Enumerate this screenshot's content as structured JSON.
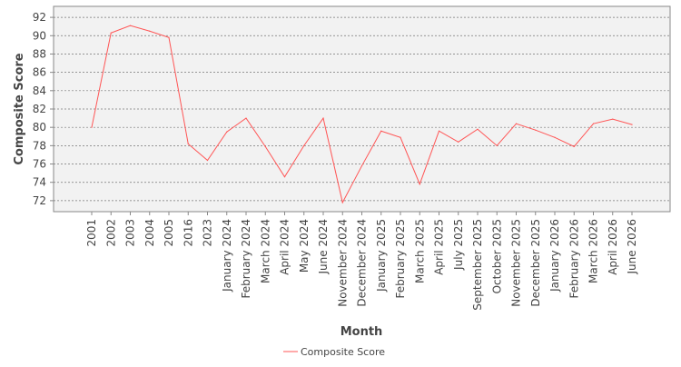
{
  "chart_data": {
    "type": "line",
    "title": "",
    "xlabel": "Month",
    "ylabel": "Composite Score",
    "categories": [
      "2001",
      "2002",
      "2003",
      "2004",
      "2005",
      "2016",
      "2023",
      "January 2024",
      "February 2024",
      "March 2024",
      "April 2024",
      "May 2024",
      "June 2024",
      "November 2024",
      "December 2024",
      "January 2025",
      "February 2025",
      "March 2025",
      "April 2025",
      "July 2025",
      "September 2025",
      "October 2025",
      "November 2025",
      "December 2025",
      "January 2026",
      "February 2026",
      "March 2026",
      "April 2026",
      "June 2026"
    ],
    "series": [
      {
        "name": "Composite Score",
        "color": "#ff5555",
        "values": [
          80.0,
          90.3,
          91.1,
          90.5,
          89.8,
          78.2,
          76.4,
          79.5,
          81.0,
          77.9,
          74.6,
          78.0,
          81.0,
          71.8,
          75.8,
          79.6,
          78.9,
          73.8,
          79.6,
          78.4,
          79.8,
          78.0,
          80.4,
          79.7,
          78.9,
          77.9,
          80.4,
          80.9,
          80.3
        ]
      }
    ],
    "ylim": [
      70.8,
      93.2
    ],
    "yticks": [
      72,
      74,
      76,
      78,
      80,
      82,
      84,
      86,
      88,
      90,
      92
    ],
    "grid": true,
    "legend_position": "bottom-center"
  },
  "legend": {
    "label": "Composite Score"
  }
}
